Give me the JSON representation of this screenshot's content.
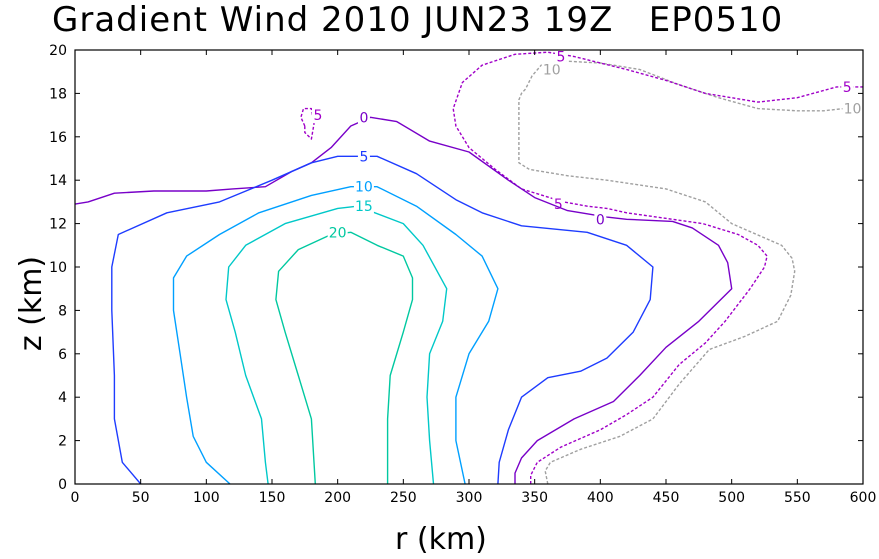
{
  "chart_data": {
    "type": "contour",
    "title": "Gradient Wind 2010 JUN23 19Z   EP0510",
    "xlabel": "r (km)",
    "ylabel": "z (km)",
    "xlim": [
      0,
      600
    ],
    "ylim": [
      0,
      20
    ],
    "xticks": [
      0,
      50,
      100,
      150,
      200,
      250,
      300,
      350,
      400,
      450,
      500,
      550,
      600
    ],
    "yticks": [
      0,
      2,
      4,
      6,
      8,
      10,
      12,
      14,
      16,
      18,
      20
    ],
    "grid": false,
    "contours": [
      {
        "level": -10,
        "color": "#a0a0a0",
        "dashed": true,
        "lines": [
          [
            [
              360,
              0
            ],
            [
              358,
              0.6
            ],
            [
              362,
              1.0
            ],
            [
              385,
              1.6
            ],
            [
              415,
              2.2
            ],
            [
              440,
              3.0
            ],
            [
              460,
              4.6
            ],
            [
              483,
              6.2
            ],
            [
              510,
              6.8
            ],
            [
              535,
              7.5
            ],
            [
              545,
              8.7
            ],
            [
              548,
              9.8
            ],
            [
              546,
              10.4
            ],
            [
              538,
              11.0
            ],
            [
              500,
              12.0
            ],
            [
              480,
              13.0
            ],
            [
              450,
              13.6
            ],
            [
              405,
              14.0
            ],
            [
              376,
              14.2
            ],
            [
              346,
              14.5
            ],
            [
              338,
              14.8
            ],
            [
              338,
              17.7
            ],
            [
              340,
              18.0
            ],
            [
              343,
              18.2
            ],
            [
              348,
              18.8
            ],
            [
              355,
              19.3
            ],
            [
              370,
              19.5
            ],
            [
              400,
              19.4
            ],
            [
              430,
              19.1
            ],
            [
              460,
              18.4
            ],
            [
              490,
              17.8
            ],
            [
              520,
              17.3
            ],
            [
              550,
              17.2
            ],
            [
              570,
              17.2
            ],
            [
              600,
              17.4
            ]
          ]
        ],
        "labels": [
          {
            "text": "10",
            "x": 363,
            "y": 19.1
          },
          {
            "text": "10",
            "x": 592,
            "y": 17.3
          }
        ]
      },
      {
        "level": -5,
        "color": "#a000c8",
        "dashed": true,
        "lines": [
          [
            [
              347,
              0
            ],
            [
              347,
              0.4
            ],
            [
              352,
              1.0
            ],
            [
              370,
              1.7
            ],
            [
              400,
              2.5
            ],
            [
              420,
              3.2
            ],
            [
              440,
              4.0
            ],
            [
              460,
              5.5
            ],
            [
              480,
              6.5
            ],
            [
              495,
              7.5
            ],
            [
              514,
              9.0
            ],
            [
              525,
              10.0
            ],
            [
              527,
              10.5
            ],
            [
              520,
              11.0
            ],
            [
              505,
              11.5
            ],
            [
              478,
              12.0
            ],
            [
              420,
              12.5
            ],
            [
              405,
              12.7
            ],
            [
              390,
              12.8
            ],
            [
              372,
              13.0
            ],
            [
              340,
              13.6
            ],
            [
              320,
              14.5
            ],
            [
              300,
              15.5
            ],
            [
              290,
              16.5
            ],
            [
              288,
              17.3
            ],
            [
              295,
              18.5
            ],
            [
              310,
              19.3
            ],
            [
              335,
              19.8
            ],
            [
              360,
              19.9
            ],
            [
              380,
              19.7
            ],
            [
              400,
              19.4
            ],
            [
              420,
              19.1
            ],
            [
              450,
              18.6
            ],
            [
              480,
              18.0
            ],
            [
              520,
              17.6
            ],
            [
              550,
              17.8
            ],
            [
              580,
              18.3
            ],
            [
              600,
              18.3
            ]
          ],
          [
            [
              175,
              16.5
            ],
            [
              172,
              16.9
            ],
            [
              174,
              17.3
            ],
            [
              180,
              17.3
            ],
            [
              182,
              16.6
            ],
            [
              180,
              15.9
            ],
            [
              175,
              16.2
            ],
            [
              175,
              16.5
            ]
          ]
        ],
        "labels": [
          {
            "text": "5",
            "x": 370,
            "y": 19.7
          },
          {
            "text": "5",
            "x": 368,
            "y": 12.9
          },
          {
            "text": "5",
            "x": 588,
            "y": 18.3
          },
          {
            "text": "5",
            "x": 185,
            "y": 17.0
          }
        ]
      },
      {
        "level": 0,
        "color": "#7800c8",
        "dashed": false,
        "lines": [
          [
            [
              335,
              0
            ],
            [
              335,
              0.5
            ],
            [
              340,
              1.2
            ],
            [
              352,
              2.0
            ],
            [
              380,
              3.0
            ],
            [
              410,
              3.8
            ],
            [
              430,
              5.0
            ],
            [
              450,
              6.3
            ],
            [
              475,
              7.5
            ],
            [
              500,
              9.0
            ],
            [
              497,
              10.2
            ],
            [
              490,
              11.0
            ],
            [
              470,
              11.8
            ],
            [
              455,
              12.1
            ],
            [
              420,
              12.2
            ],
            [
              405,
              12.3
            ],
            [
              375,
              12.6
            ],
            [
              350,
              13.2
            ],
            [
              330,
              14.0
            ],
            [
              300,
              15.3
            ],
            [
              270,
              15.8
            ],
            [
              245,
              16.7
            ],
            [
              225,
              16.9
            ],
            [
              210,
              16.5
            ],
            [
              195,
              15.5
            ],
            [
              180,
              14.8
            ],
            [
              165,
              14.4
            ],
            [
              145,
              13.7
            ],
            [
              120,
              13.6
            ],
            [
              100,
              13.5
            ],
            [
              60,
              13.5
            ],
            [
              30,
              13.4
            ],
            [
              10,
              13.0
            ],
            [
              0,
              12.9
            ]
          ]
        ],
        "labels": [
          {
            "text": "0",
            "x": 220,
            "y": 16.9
          },
          {
            "text": "0",
            "x": 400,
            "y": 12.2
          }
        ]
      },
      {
        "level": 5,
        "color": "#1e3cff",
        "dashed": false,
        "lines": [
          [
            [
              50,
              0
            ],
            [
              36,
              1.0
            ],
            [
              30,
              3.0
            ],
            [
              30,
              5.0
            ],
            [
              28,
              8.0
            ],
            [
              28,
              10.0
            ],
            [
              33,
              11.5
            ],
            [
              70,
              12.5
            ],
            [
              110,
              13.0
            ],
            [
              150,
              14.0
            ],
            [
              180,
              14.8
            ],
            [
              200,
              15.1
            ],
            [
              230,
              15.1
            ],
            [
              260,
              14.3
            ],
            [
              290,
              13.1
            ],
            [
              310,
              12.5
            ],
            [
              340,
              11.9
            ],
            [
              390,
              11.6
            ],
            [
              420,
              11.0
            ],
            [
              440,
              10.0
            ],
            [
              438,
              8.5
            ],
            [
              425,
              7.0
            ],
            [
              405,
              5.8
            ],
            [
              385,
              5.2
            ],
            [
              360,
              4.9
            ],
            [
              340,
              4.0
            ],
            [
              330,
              2.5
            ],
            [
              323,
              1.0
            ],
            [
              322,
              0
            ]
          ]
        ],
        "labels": [
          {
            "text": "5",
            "x": 220,
            "y": 15.1
          }
        ]
      },
      {
        "level": 10,
        "color": "#00a0ff",
        "dashed": false,
        "lines": [
          [
            [
              118,
              0
            ],
            [
              100,
              1.0
            ],
            [
              90,
              2.2
            ],
            [
              85,
              4.0
            ],
            [
              80,
              6.0
            ],
            [
              75,
              8.0
            ],
            [
              75,
              9.5
            ],
            [
              85,
              10.5
            ],
            [
              110,
              11.5
            ],
            [
              140,
              12.5
            ],
            [
              180,
              13.3
            ],
            [
              210,
              13.7
            ],
            [
              230,
              13.7
            ],
            [
              260,
              12.8
            ],
            [
              290,
              11.5
            ],
            [
              310,
              10.5
            ],
            [
              322,
              9.0
            ],
            [
              315,
              7.5
            ],
            [
              300,
              6.0
            ],
            [
              290,
              4.0
            ],
            [
              290,
              2.0
            ],
            [
              297,
              0
            ]
          ]
        ],
        "labels": [
          {
            "text": "10",
            "x": 220,
            "y": 13.7
          }
        ]
      },
      {
        "level": 15,
        "color": "#00c8c8",
        "dashed": false,
        "lines": [
          [
            [
              147,
              0
            ],
            [
              145,
              1.0
            ],
            [
              142,
              3.0
            ],
            [
              130,
              5.0
            ],
            [
              122,
              7.0
            ],
            [
              115,
              8.5
            ],
            [
              117,
              10.0
            ],
            [
              130,
              11.0
            ],
            [
              160,
              12.0
            ],
            [
              200,
              12.7
            ],
            [
              215,
              12.8
            ],
            [
              250,
              12.0
            ],
            [
              265,
              11.0
            ],
            [
              283,
              9.0
            ],
            [
              280,
              7.5
            ],
            [
              270,
              6.0
            ],
            [
              268,
              4.0
            ],
            [
              270,
              2.0
            ],
            [
              273,
              0
            ]
          ]
        ],
        "labels": [
          {
            "text": "15",
            "x": 220,
            "y": 12.8
          }
        ]
      },
      {
        "level": 20,
        "color": "#00c8a0",
        "dashed": false,
        "lines": [
          [
            [
              183,
              0
            ],
            [
              182,
              1.0
            ],
            [
              180,
              3.0
            ],
            [
              170,
              5.0
            ],
            [
              160,
              7.0
            ],
            [
              153,
              8.5
            ],
            [
              155,
              9.8
            ],
            [
              170,
              10.8
            ],
            [
              195,
              11.5
            ],
            [
              210,
              11.6
            ],
            [
              230,
              11.0
            ],
            [
              250,
              10.5
            ],
            [
              257,
              9.5
            ],
            [
              257,
              8.5
            ],
            [
              250,
              7.0
            ],
            [
              240,
              5.0
            ],
            [
              238,
              3.0
            ],
            [
              238,
              1.0
            ],
            [
              238,
              0
            ]
          ]
        ],
        "labels": [
          {
            "text": "20",
            "x": 200,
            "y": 11.6
          }
        ]
      }
    ]
  }
}
